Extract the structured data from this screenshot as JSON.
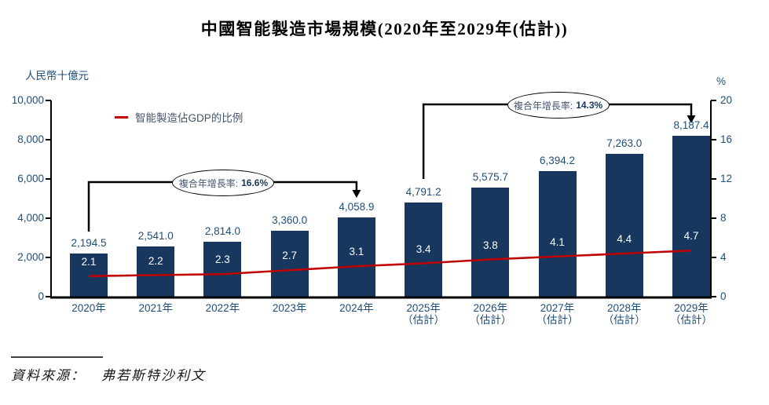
{
  "page": {
    "title": "中國智能製造市場規模(2020年至2029年(估計))"
  },
  "legend": {
    "label": "智能製造佔GDP的比例"
  },
  "annotations": [
    {
      "label": "複合年增長率:",
      "value": "16.6%",
      "from_index": 0,
      "to_index": 4
    },
    {
      "label": "複合年增長率:",
      "value": "14.3%",
      "from_index": 5,
      "to_index": 9
    }
  ],
  "source": {
    "label": "資料來源：",
    "value": "弗若斯特沙利文"
  },
  "colors": {
    "bar": "#17375E",
    "line": "#C00000",
    "axis_line": "#000000",
    "axis_text": "#1F4E79",
    "bar_value_text": "#1F4E79",
    "in_bar_text": "#FFFFFF",
    "legend_text": "#44546A"
  },
  "chart_data": {
    "type": "combo",
    "subtypes": [
      "bar",
      "line"
    ],
    "categories": [
      [
        "2020年"
      ],
      [
        "2021年"
      ],
      [
        "2022年"
      ],
      [
        "2023年"
      ],
      [
        "2024年"
      ],
      [
        "2025年",
        "（估計）"
      ],
      [
        "2026年",
        "（估計）"
      ],
      [
        "2027年",
        "（估計）"
      ],
      [
        "2028年",
        "（估計）"
      ],
      [
        "2029年",
        "（估計）"
      ]
    ],
    "series": [
      {
        "name": "智能製造市場規模",
        "type": "bar",
        "axis": "left",
        "values": [
          2194.5,
          2541.0,
          2814.0,
          3360.0,
          4058.9,
          4791.2,
          5575.7,
          6394.2,
          7263.0,
          8187.4
        ],
        "value_labels": [
          "2,194.5",
          "2,541.0",
          "2,814.0",
          "3,360.0",
          "4,058.9",
          "4,791.2",
          "5,575.7",
          "6,394.2",
          "7,263.0",
          "8,187.4"
        ]
      },
      {
        "name": "智能製造佔GDP的比例",
        "type": "line",
        "axis": "right",
        "values": [
          2.1,
          2.2,
          2.3,
          2.7,
          3.1,
          3.4,
          3.8,
          4.1,
          4.4,
          4.7
        ],
        "value_labels": [
          "2.1",
          "2.2",
          "2.3",
          "2.7",
          "3.1",
          "3.4",
          "3.8",
          "4.1",
          "4.4",
          "4.7"
        ]
      }
    ],
    "left_axis": {
      "title": "人民幣十億元",
      "min": 0,
      "max": 10000,
      "tick_labels": [
        "0",
        "2,000",
        "4,000",
        "6,000",
        "8,000",
        "10,000"
      ]
    },
    "right_axis": {
      "title": "%",
      "min": 0,
      "max": 20,
      "tick_labels": [
        "0",
        "4",
        "8",
        "12",
        "16",
        "20"
      ]
    },
    "grid": false,
    "legend_position": "top-left-inside"
  }
}
